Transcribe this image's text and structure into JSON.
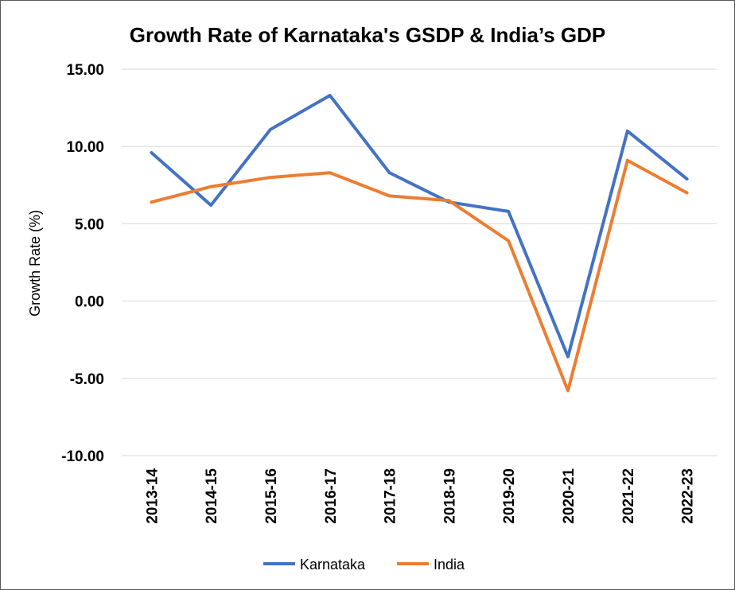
{
  "chart_data": {
    "type": "line",
    "title": "Growth Rate of Karnataka's GSDP & India’s GDP",
    "xlabel": "",
    "ylabel": "Growth Rate (%)",
    "ylim": [
      -10,
      15
    ],
    "yticks": [
      "15.00",
      "10.00",
      "5.00",
      "0.00",
      "-5.00",
      "-10.00"
    ],
    "ytick_values": [
      15,
      10,
      5,
      0,
      -5,
      -10
    ],
    "grid": true,
    "legend": "bottom",
    "categories": [
      "2013-14",
      "2014-15",
      "2015-16",
      "2016-17",
      "2017-18",
      "2018-19",
      "2019-20",
      "2020-21",
      "2021-22",
      "2022-23"
    ],
    "series": [
      {
        "name": "Karnataka",
        "color": "#4472C4",
        "values": [
          9.6,
          6.2,
          11.1,
          13.3,
          8.3,
          6.4,
          5.8,
          -3.6,
          11.0,
          7.9
        ]
      },
      {
        "name": "India",
        "color": "#ED7D31",
        "values": [
          6.4,
          7.4,
          8.0,
          8.3,
          6.8,
          6.5,
          3.9,
          -5.8,
          9.1,
          7.0
        ]
      }
    ]
  }
}
